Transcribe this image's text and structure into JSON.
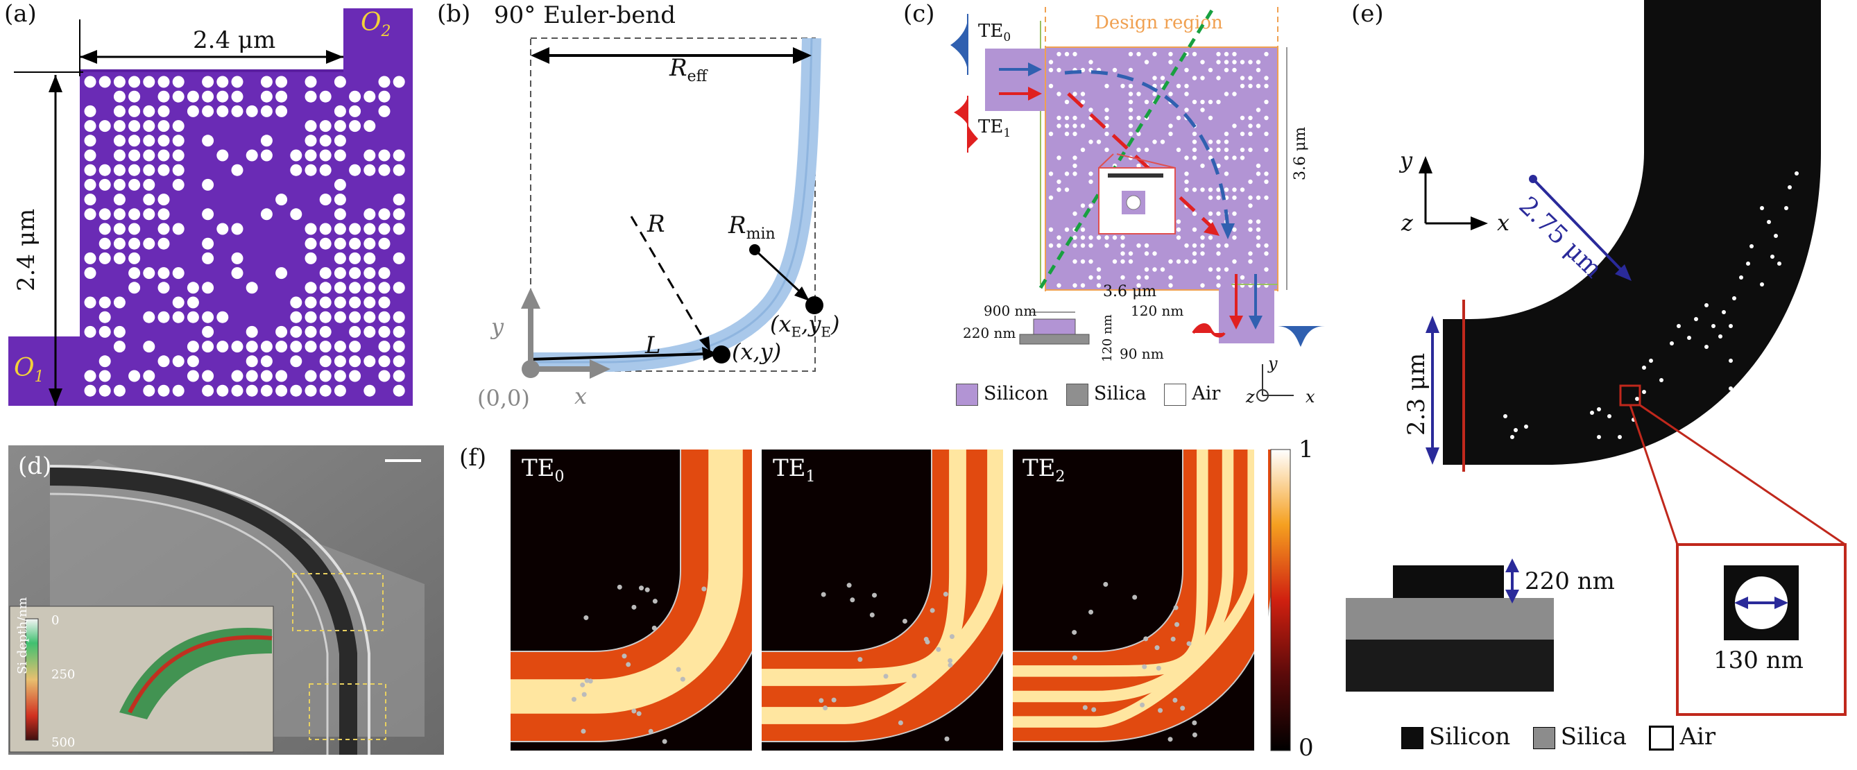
{
  "panels": {
    "a": {
      "label": "(a)",
      "width": "2.4 μm",
      "height": "2.4 μm",
      "o1": "O",
      "o1_sub": "1",
      "o2": "O",
      "o2_sub": "2",
      "colors": {
        "device": "#6a2bb5",
        "hole": "#ffffff"
      }
    },
    "b": {
      "label": "(b)",
      "title": "90° Euler-bend",
      "reff": "R",
      "reff_sub": "eff",
      "r": "R",
      "rmin": "R",
      "rmin_sub": "min",
      "l": "L",
      "xy": "(x,y)",
      "xeye": "(x",
      "xe_sub": "E",
      "ye": ",y",
      "ye_sub": "E",
      "close": ")",
      "origin": "(0,0)",
      "axis_x": "x",
      "axis_y": "y",
      "colors": {
        "bend": "#a9c8ea"
      }
    },
    "c": {
      "label": "(c)",
      "design_region": "Design region",
      "te0": "TE",
      "te0_sub": "0",
      "te1": "TE",
      "te1_sub": "1",
      "dim_36v": "3.6 μm",
      "dim_36h": "3.6 μm",
      "dim_120a": "120 nm",
      "dim_120b": "120 nm",
      "dim_90": "90 nm",
      "dim_900": "900 nm",
      "dim_220": "220 nm",
      "legend": [
        "Silicon",
        "Silica",
        "Air"
      ],
      "axis_x": "x",
      "axis_y": "y",
      "axis_z": "z",
      "colors": {
        "silicon": "#b294d4",
        "silica": "#8f8f8f",
        "design": "#f0a050",
        "diag": "#18a040",
        "blue": "#3060b0",
        "red": "#e02020"
      }
    },
    "d": {
      "label": "(d)",
      "colorbar_title": "Si depth/nm",
      "ticks": [
        "0",
        "250",
        "500"
      ]
    },
    "e": {
      "label": "(e)",
      "radius": "2.75 μm",
      "width": "2.3 μm",
      "thickness": "220 nm",
      "hole": "130 nm",
      "axis_x": "x",
      "axis_y": "y",
      "axis_z": "z",
      "legend": [
        "Silicon",
        "Silica",
        "Air"
      ],
      "colors": {
        "silicon": "#0d0d0d",
        "silica": "#8c8c8c",
        "dim": "#2a2a9a",
        "highlight": "#c0281c"
      }
    },
    "f": {
      "label": "(f)",
      "modes": [
        {
          "name": "TE",
          "sub": "0"
        },
        {
          "name": "TE",
          "sub": "1"
        },
        {
          "name": "TE",
          "sub": "2"
        }
      ],
      "colorbar_max": "1",
      "colorbar_min": "0"
    }
  }
}
